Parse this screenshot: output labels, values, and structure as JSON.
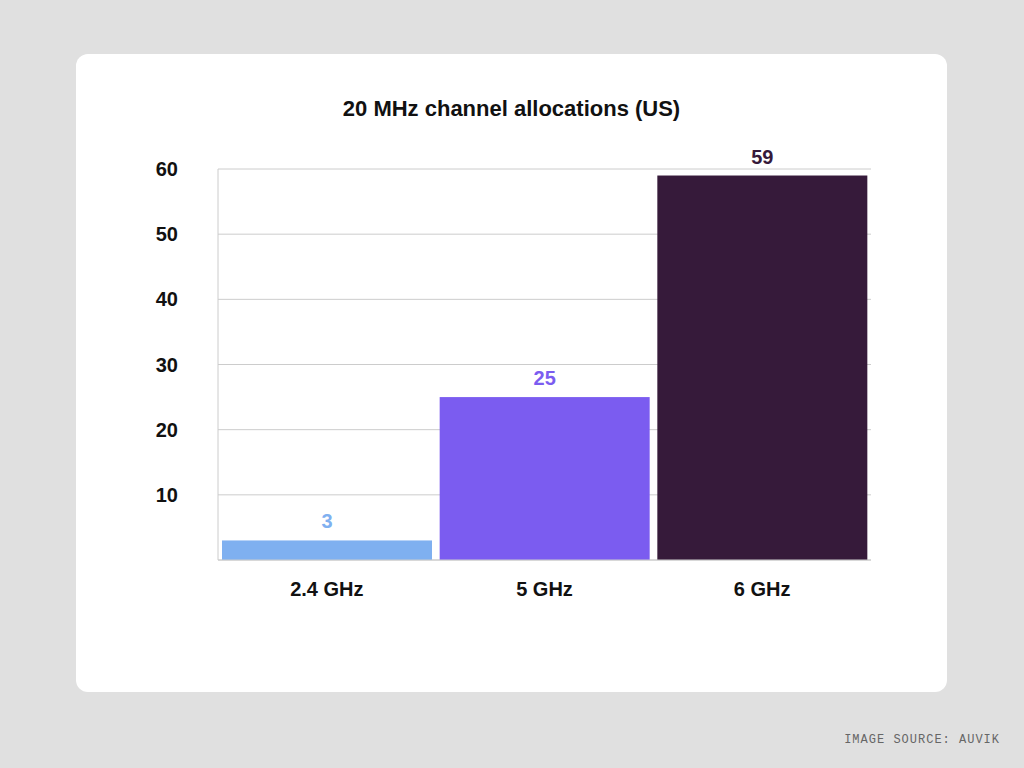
{
  "chart_data": {
    "type": "bar",
    "title": "20 MHz channel allocations (US)",
    "categories": [
      "2.4 GHz",
      "5 GHz",
      "6 GHz"
    ],
    "values": [
      3,
      25,
      59
    ],
    "colors": [
      "#7fb0f0",
      "#7b5cf0",
      "#361a3a"
    ],
    "ylim": [
      0,
      60
    ],
    "yticks": [
      10,
      20,
      30,
      40,
      50,
      60
    ],
    "grid": true,
    "data_labels": true,
    "annotation": "IMAGE SOURCE: AUVIK"
  }
}
